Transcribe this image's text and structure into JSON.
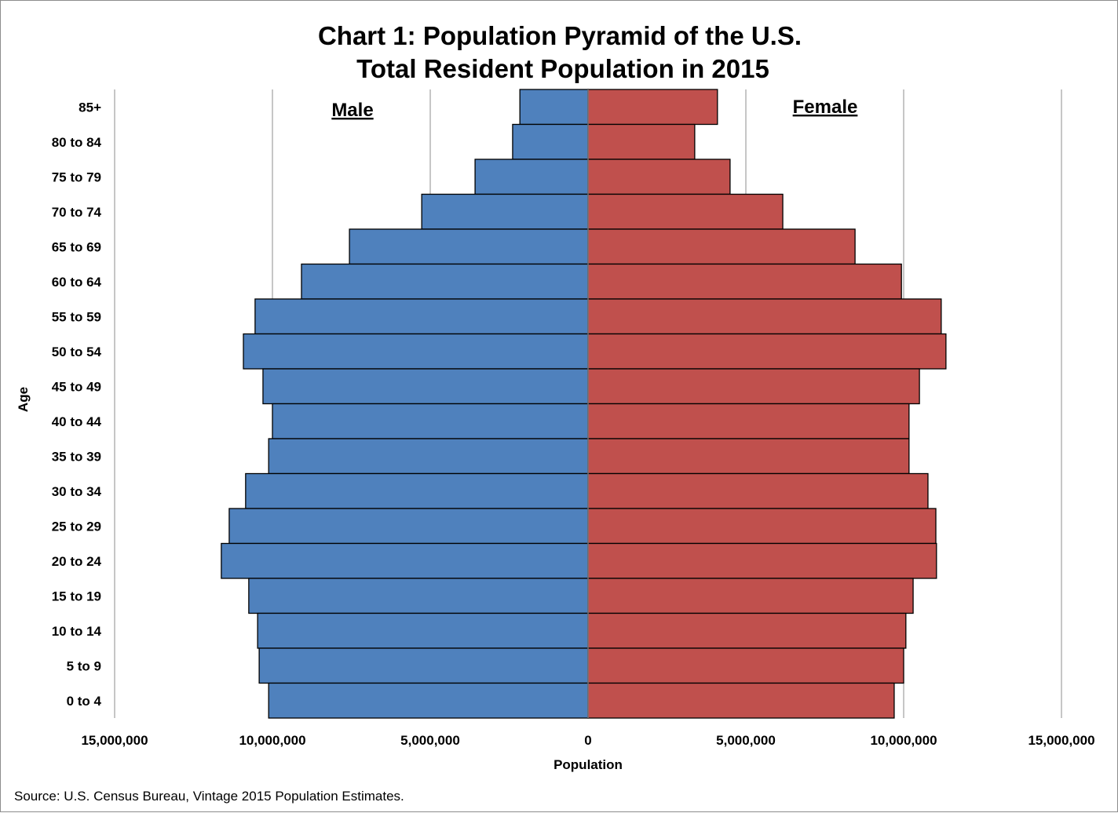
{
  "chart_data": {
    "type": "bar",
    "orientation": "horizontal-pyramid",
    "title": [
      "Chart 1: Population Pyramid of the U.S.",
      "Total Resident Population in 2015"
    ],
    "xlabel": "Population",
    "ylabel": "Age",
    "categories": [
      "85+",
      "80 to 84",
      "75 to 79",
      "70 to 74",
      "65 to 69",
      "60 to 64",
      "55 to 59",
      "50 to 54",
      "45 to 49",
      "40 to 44",
      "35 to 39",
      "30 to 34",
      "25 to 29",
      "20 to 24",
      "15 to 19",
      "10 to 14",
      "5 to 9",
      "0 to 4"
    ],
    "series": [
      {
        "name": "Male",
        "color": "#4F81BD",
        "side": "left",
        "values": [
          2160000,
          2390000,
          3580000,
          5270000,
          7560000,
          9080000,
          10550000,
          10920000,
          10300000,
          10000000,
          10120000,
          10850000,
          11370000,
          11620000,
          10750000,
          10470000,
          10420000,
          10120000
        ]
      },
      {
        "name": "Female",
        "color": "#C0504D",
        "side": "right",
        "values": [
          4100000,
          3380000,
          4500000,
          6170000,
          8460000,
          9930000,
          11190000,
          11340000,
          10500000,
          10170000,
          10170000,
          10770000,
          11020000,
          11040000,
          10300000,
          10070000,
          10000000,
          9700000
        ]
      }
    ],
    "xlim": [
      -15000000,
      15000000
    ],
    "xticks": [
      -15000000,
      -10000000,
      -5000000,
      0,
      5000000,
      10000000,
      15000000
    ],
    "xtick_labels": [
      "15,000,000",
      "10,000,000",
      "5,000,000",
      "0",
      "5,000,000",
      "10,000,000",
      "15,000,000"
    ],
    "grid": "vertical",
    "legend": "none"
  },
  "source": "Source: U.S. Census Bureau, Vintage 2015 Population Estimates."
}
